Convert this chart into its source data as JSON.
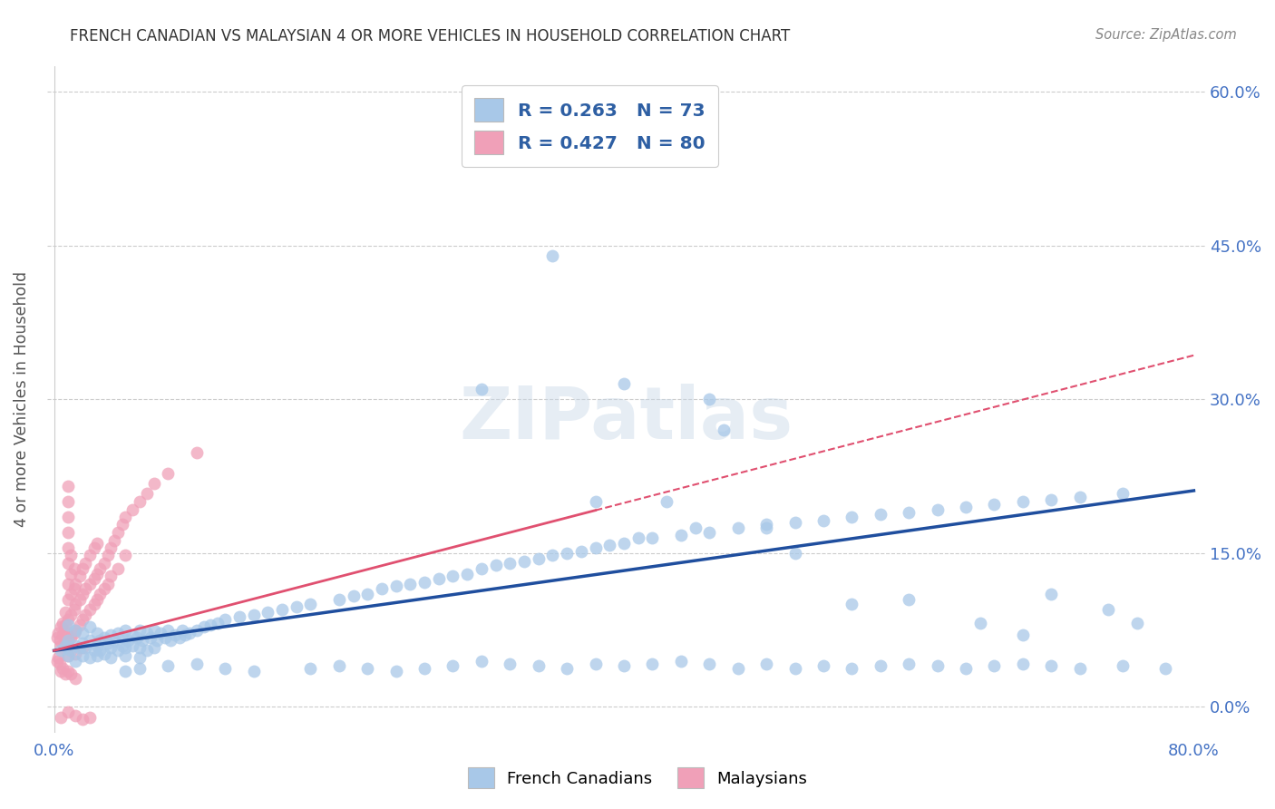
{
  "title": "FRENCH CANADIAN VS MALAYSIAN 4 OR MORE VEHICLES IN HOUSEHOLD CORRELATION CHART",
  "source": "Source: ZipAtlas.com",
  "ylabel": "4 or more Vehicles in Household",
  "x_min": 0.0,
  "x_max": 0.8,
  "y_min": -0.025,
  "y_max": 0.625,
  "x_tick_positions": [
    0.0,
    0.1,
    0.2,
    0.3,
    0.4,
    0.5,
    0.6,
    0.7,
    0.8
  ],
  "x_tick_labels": [
    "0.0%",
    "",
    "",
    "",
    "",
    "",
    "",
    "",
    "80.0%"
  ],
  "y_ticks": [
    0.0,
    0.15,
    0.3,
    0.45,
    0.6
  ],
  "y_tick_labels_right": [
    "0.0%",
    "15.0%",
    "30.0%",
    "45.0%",
    "60.0%"
  ],
  "legend_text_color": "#2e5fa3",
  "french_canadian_color": "#a8c8e8",
  "malaysian_color": "#f0a0b8",
  "french_canadian_line_color": "#1f4e9e",
  "malaysian_line_color": "#e05070",
  "watermark": "ZIPatlas",
  "axis_color": "#4472c4",
  "fc_line_intercept": 0.055,
  "fc_line_slope": 0.195,
  "my_line_intercept": 0.055,
  "my_line_slope": 0.36,
  "my_line_solid_end": 0.38,
  "french_canadian_scatter": [
    [
      0.005,
      0.055
    ],
    [
      0.008,
      0.06
    ],
    [
      0.01,
      0.05
    ],
    [
      0.01,
      0.065
    ],
    [
      0.01,
      0.08
    ],
    [
      0.012,
      0.055
    ],
    [
      0.015,
      0.06
    ],
    [
      0.015,
      0.075
    ],
    [
      0.015,
      0.045
    ],
    [
      0.018,
      0.058
    ],
    [
      0.02,
      0.062
    ],
    [
      0.02,
      0.05
    ],
    [
      0.02,
      0.072
    ],
    [
      0.022,
      0.058
    ],
    [
      0.025,
      0.065
    ],
    [
      0.025,
      0.048
    ],
    [
      0.025,
      0.078
    ],
    [
      0.028,
      0.055
    ],
    [
      0.03,
      0.06
    ],
    [
      0.03,
      0.072
    ],
    [
      0.03,
      0.05
    ],
    [
      0.032,
      0.065
    ],
    [
      0.032,
      0.055
    ],
    [
      0.035,
      0.068
    ],
    [
      0.035,
      0.052
    ],
    [
      0.038,
      0.062
    ],
    [
      0.04,
      0.07
    ],
    [
      0.04,
      0.058
    ],
    [
      0.04,
      0.048
    ],
    [
      0.042,
      0.065
    ],
    [
      0.045,
      0.072
    ],
    [
      0.045,
      0.055
    ],
    [
      0.048,
      0.068
    ],
    [
      0.048,
      0.06
    ],
    [
      0.05,
      0.075
    ],
    [
      0.05,
      0.058
    ],
    [
      0.05,
      0.05
    ],
    [
      0.052,
      0.065
    ],
    [
      0.055,
      0.07
    ],
    [
      0.055,
      0.06
    ],
    [
      0.058,
      0.068
    ],
    [
      0.06,
      0.075
    ],
    [
      0.06,
      0.058
    ],
    [
      0.06,
      0.048
    ],
    [
      0.062,
      0.065
    ],
    [
      0.065,
      0.072
    ],
    [
      0.065,
      0.055
    ],
    [
      0.068,
      0.068
    ],
    [
      0.07,
      0.075
    ],
    [
      0.07,
      0.058
    ],
    [
      0.072,
      0.065
    ],
    [
      0.075,
      0.072
    ],
    [
      0.078,
      0.068
    ],
    [
      0.08,
      0.075
    ],
    [
      0.082,
      0.065
    ],
    [
      0.085,
      0.07
    ],
    [
      0.088,
      0.068
    ],
    [
      0.09,
      0.075
    ],
    [
      0.092,
      0.07
    ],
    [
      0.095,
      0.072
    ],
    [
      0.1,
      0.075
    ],
    [
      0.105,
      0.078
    ],
    [
      0.11,
      0.08
    ],
    [
      0.115,
      0.082
    ],
    [
      0.12,
      0.085
    ],
    [
      0.13,
      0.088
    ],
    [
      0.14,
      0.09
    ],
    [
      0.15,
      0.092
    ],
    [
      0.16,
      0.095
    ],
    [
      0.17,
      0.098
    ],
    [
      0.18,
      0.1
    ],
    [
      0.2,
      0.105
    ],
    [
      0.21,
      0.108
    ],
    [
      0.22,
      0.11
    ],
    [
      0.23,
      0.115
    ],
    [
      0.24,
      0.118
    ],
    [
      0.25,
      0.12
    ],
    [
      0.26,
      0.122
    ],
    [
      0.27,
      0.125
    ],
    [
      0.28,
      0.128
    ],
    [
      0.29,
      0.13
    ],
    [
      0.3,
      0.135
    ],
    [
      0.31,
      0.138
    ],
    [
      0.32,
      0.14
    ],
    [
      0.33,
      0.142
    ],
    [
      0.34,
      0.145
    ],
    [
      0.35,
      0.148
    ],
    [
      0.36,
      0.15
    ],
    [
      0.37,
      0.152
    ],
    [
      0.38,
      0.155
    ],
    [
      0.39,
      0.158
    ],
    [
      0.4,
      0.16
    ],
    [
      0.42,
      0.165
    ],
    [
      0.44,
      0.168
    ],
    [
      0.46,
      0.17
    ],
    [
      0.48,
      0.175
    ],
    [
      0.5,
      0.178
    ],
    [
      0.52,
      0.18
    ],
    [
      0.54,
      0.182
    ],
    [
      0.56,
      0.185
    ],
    [
      0.58,
      0.188
    ],
    [
      0.6,
      0.19
    ],
    [
      0.62,
      0.192
    ],
    [
      0.64,
      0.195
    ],
    [
      0.66,
      0.198
    ],
    [
      0.68,
      0.2
    ],
    [
      0.7,
      0.202
    ],
    [
      0.72,
      0.205
    ],
    [
      0.75,
      0.208
    ],
    [
      0.3,
      0.56
    ],
    [
      0.35,
      0.44
    ],
    [
      0.4,
      0.315
    ],
    [
      0.46,
      0.3
    ],
    [
      0.47,
      0.27
    ],
    [
      0.3,
      0.31
    ],
    [
      0.38,
      0.2
    ],
    [
      0.41,
      0.165
    ],
    [
      0.43,
      0.2
    ],
    [
      0.45,
      0.175
    ],
    [
      0.5,
      0.175
    ],
    [
      0.52,
      0.15
    ],
    [
      0.56,
      0.1
    ],
    [
      0.6,
      0.105
    ],
    [
      0.65,
      0.082
    ],
    [
      0.68,
      0.07
    ],
    [
      0.7,
      0.11
    ],
    [
      0.74,
      0.095
    ],
    [
      0.76,
      0.082
    ],
    [
      0.05,
      0.035
    ],
    [
      0.06,
      0.038
    ],
    [
      0.08,
      0.04
    ],
    [
      0.1,
      0.042
    ],
    [
      0.12,
      0.038
    ],
    [
      0.14,
      0.035
    ],
    [
      0.18,
      0.038
    ],
    [
      0.2,
      0.04
    ],
    [
      0.22,
      0.038
    ],
    [
      0.24,
      0.035
    ],
    [
      0.26,
      0.038
    ],
    [
      0.28,
      0.04
    ],
    [
      0.3,
      0.045
    ],
    [
      0.32,
      0.042
    ],
    [
      0.34,
      0.04
    ],
    [
      0.36,
      0.038
    ],
    [
      0.38,
      0.042
    ],
    [
      0.4,
      0.04
    ],
    [
      0.42,
      0.042
    ],
    [
      0.44,
      0.045
    ],
    [
      0.46,
      0.042
    ],
    [
      0.48,
      0.038
    ],
    [
      0.5,
      0.042
    ],
    [
      0.52,
      0.038
    ],
    [
      0.54,
      0.04
    ],
    [
      0.56,
      0.038
    ],
    [
      0.58,
      0.04
    ],
    [
      0.6,
      0.042
    ],
    [
      0.62,
      0.04
    ],
    [
      0.64,
      0.038
    ],
    [
      0.66,
      0.04
    ],
    [
      0.68,
      0.042
    ],
    [
      0.7,
      0.04
    ],
    [
      0.72,
      0.038
    ],
    [
      0.75,
      0.04
    ],
    [
      0.78,
      0.038
    ]
  ],
  "malaysian_scatter": [
    [
      0.002,
      0.068
    ],
    [
      0.003,
      0.072
    ],
    [
      0.004,
      0.065
    ],
    [
      0.005,
      0.078
    ],
    [
      0.005,
      0.06
    ],
    [
      0.006,
      0.082
    ],
    [
      0.006,
      0.07
    ],
    [
      0.007,
      0.075
    ],
    [
      0.007,
      0.058
    ],
    [
      0.008,
      0.08
    ],
    [
      0.008,
      0.065
    ],
    [
      0.008,
      0.092
    ],
    [
      0.009,
      0.072
    ],
    [
      0.009,
      0.058
    ],
    [
      0.01,
      0.085
    ],
    [
      0.01,
      0.065
    ],
    [
      0.01,
      0.105
    ],
    [
      0.01,
      0.12
    ],
    [
      0.01,
      0.14
    ],
    [
      0.01,
      0.155
    ],
    [
      0.01,
      0.17
    ],
    [
      0.01,
      0.185
    ],
    [
      0.01,
      0.2
    ],
    [
      0.01,
      0.215
    ],
    [
      0.01,
      0.05
    ],
    [
      0.012,
      0.09
    ],
    [
      0.012,
      0.068
    ],
    [
      0.012,
      0.11
    ],
    [
      0.012,
      0.13
    ],
    [
      0.012,
      0.148
    ],
    [
      0.014,
      0.095
    ],
    [
      0.014,
      0.072
    ],
    [
      0.014,
      0.115
    ],
    [
      0.014,
      0.135
    ],
    [
      0.015,
      0.1
    ],
    [
      0.015,
      0.075
    ],
    [
      0.015,
      0.12
    ],
    [
      0.015,
      0.052
    ],
    [
      0.018,
      0.105
    ],
    [
      0.018,
      0.08
    ],
    [
      0.018,
      0.128
    ],
    [
      0.02,
      0.11
    ],
    [
      0.02,
      0.085
    ],
    [
      0.02,
      0.135
    ],
    [
      0.02,
      0.058
    ],
    [
      0.022,
      0.115
    ],
    [
      0.022,
      0.09
    ],
    [
      0.022,
      0.14
    ],
    [
      0.025,
      0.12
    ],
    [
      0.025,
      0.095
    ],
    [
      0.025,
      0.148
    ],
    [
      0.028,
      0.125
    ],
    [
      0.028,
      0.1
    ],
    [
      0.028,
      0.155
    ],
    [
      0.03,
      0.13
    ],
    [
      0.03,
      0.105
    ],
    [
      0.03,
      0.16
    ],
    [
      0.032,
      0.135
    ],
    [
      0.032,
      0.11
    ],
    [
      0.035,
      0.14
    ],
    [
      0.035,
      0.115
    ],
    [
      0.038,
      0.148
    ],
    [
      0.038,
      0.12
    ],
    [
      0.04,
      0.155
    ],
    [
      0.04,
      0.128
    ],
    [
      0.042,
      0.162
    ],
    [
      0.045,
      0.17
    ],
    [
      0.045,
      0.135
    ],
    [
      0.048,
      0.178
    ],
    [
      0.05,
      0.185
    ],
    [
      0.05,
      0.148
    ],
    [
      0.055,
      0.192
    ],
    [
      0.06,
      0.2
    ],
    [
      0.065,
      0.208
    ],
    [
      0.07,
      0.218
    ],
    [
      0.08,
      0.228
    ],
    [
      0.1,
      0.248
    ],
    [
      0.002,
      0.045
    ],
    [
      0.003,
      0.048
    ],
    [
      0.004,
      0.042
    ],
    [
      0.005,
      0.035
    ],
    [
      0.006,
      0.038
    ],
    [
      0.008,
      0.032
    ],
    [
      0.01,
      0.035
    ],
    [
      0.012,
      0.032
    ],
    [
      0.015,
      0.028
    ],
    [
      0.005,
      -0.01
    ],
    [
      0.01,
      -0.005
    ],
    [
      0.015,
      -0.008
    ],
    [
      0.02,
      -0.012
    ],
    [
      0.025,
      -0.01
    ]
  ]
}
